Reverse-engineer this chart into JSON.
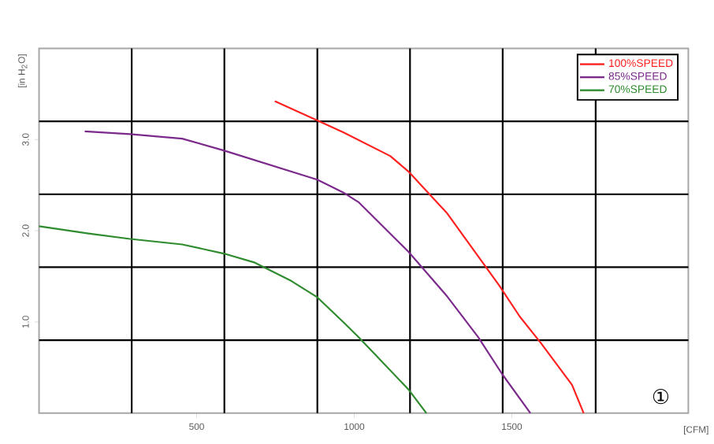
{
  "chart_data": {
    "type": "line",
    "xlabel": "[CFM]",
    "ylabel": "[in H$_{2}$O]",
    "xlim": [
      0,
      2060
    ],
    "ylim": [
      0,
      4
    ],
    "xticks": [
      {
        "value": 294,
        "label": null
      },
      {
        "value": 500,
        "label": "500"
      },
      {
        "value": 588,
        "label": null
      },
      {
        "value": 883,
        "label": null
      },
      {
        "value": 1000,
        "label": "1000"
      },
      {
        "value": 1177,
        "label": null
      },
      {
        "value": 1471,
        "label": null
      },
      {
        "value": 1500,
        "label": "1500"
      },
      {
        "value": 1766,
        "label": null
      }
    ],
    "yticks": [
      {
        "value": 0.8,
        "label": null
      },
      {
        "value": 1,
        "label": "1.0"
      },
      {
        "value": 1.6,
        "label": null
      },
      {
        "value": 2,
        "label": "2.0"
      },
      {
        "value": 2.4,
        "label": null
      },
      {
        "value": 3,
        "label": "3.0"
      },
      {
        "value": 3.2,
        "label": null
      }
    ],
    "grid": true,
    "legend": "top right",
    "marker": "none",
    "line_style": "solid",
    "annotations": [
      "①"
    ],
    "series": [
      {
        "name": "100%SPEED",
        "color": "#ff2020",
        "x": [
          748,
          883,
          965,
          1114,
          1172,
          1295,
          1460,
          1525,
          1592,
          1691,
          1728
        ],
        "values": [
          3.42,
          3.21,
          3.08,
          2.82,
          2.65,
          2.19,
          1.4,
          1.06,
          0.77,
          0.31,
          0
        ]
      },
      {
        "name": "85%SPEED",
        "color": "#7b2a8c",
        "x": [
          145,
          289,
          454,
          586,
          883,
          965,
          1015,
          1172,
          1295,
          1394,
          1469,
          1559
        ],
        "values": [
          3.09,
          3.06,
          3.01,
          2.88,
          2.56,
          2.42,
          2.31,
          1.77,
          1.28,
          0.83,
          0.43,
          0
        ]
      },
      {
        "name": "70%SPEED",
        "color": "#2e8b2e",
        "x": [
          0,
          157,
          289,
          454,
          586,
          685,
          800,
          883,
          965,
          1015,
          1172,
          1229
        ],
        "values": [
          2.05,
          1.97,
          1.91,
          1.85,
          1.75,
          1.65,
          1.45,
          1.27,
          1.0,
          0.83,
          0.26,
          0
        ]
      }
    ]
  }
}
